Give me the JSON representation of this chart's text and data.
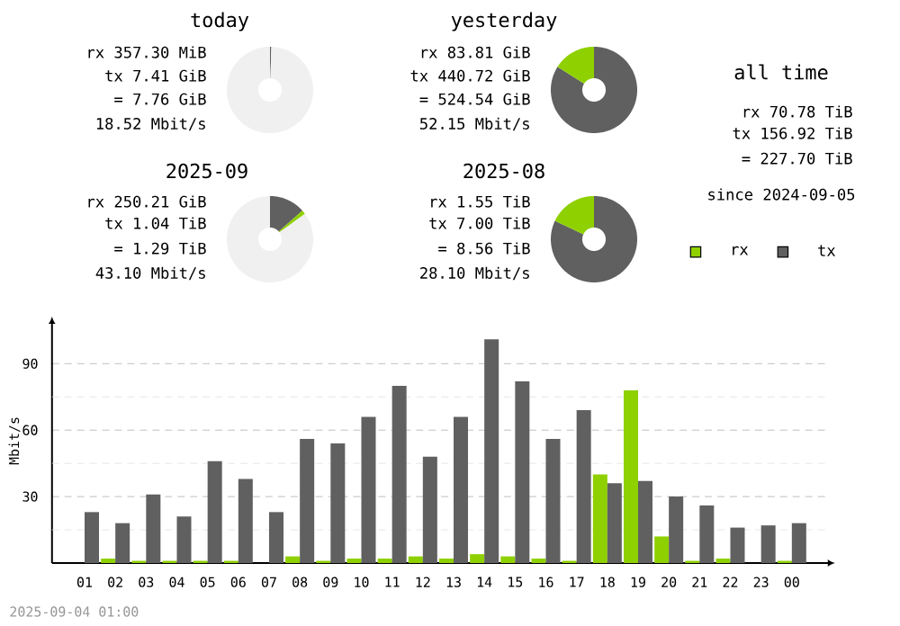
{
  "chart_data": [
    {
      "type": "donut",
      "title": "today",
      "categories": [
        null,
        null
      ],
      "values": [
        0.5,
        99.5
      ],
      "colors": [
        "#606060",
        "#f0f0f0"
      ],
      "annotations": [
        "rx 357.30 MiB",
        "tx 7.41 GiB",
        "= 7.76 GiB",
        "18.52 Mbit/s"
      ]
    },
    {
      "type": "donut",
      "title": "yesterday",
      "categories": [
        null,
        null
      ],
      "values": [
        84,
        16
      ],
      "colors": [
        "#606060",
        "#8fd000"
      ],
      "annotations": [
        "rx 83.81 GiB",
        "tx 440.72 GiB",
        "= 524.54 GiB",
        "52.15 Mbit/s"
      ]
    },
    {
      "type": "other",
      "title": "all time",
      "annotations": [
        "rx 70.78 TiB",
        "tx 156.92 TiB",
        "= 227.70 TiB",
        "since 2024-09-05"
      ]
    },
    {
      "type": "donut",
      "title": "2025-09",
      "categories": [
        null,
        null,
        null
      ],
      "values": [
        13.5,
        1.5,
        85
      ],
      "colors": [
        "#606060",
        "#8fd000",
        "#f0f0f0"
      ],
      "annotations": [
        "rx 250.21 GiB",
        "tx 1.04 TiB",
        "= 1.29 TiB",
        "43.10 Mbit/s"
      ]
    },
    {
      "type": "donut",
      "title": "2025-08",
      "categories": [
        null,
        null
      ],
      "values": [
        82,
        18
      ],
      "colors": [
        "#606060",
        "#8fd000"
      ],
      "annotations": [
        "rx 1.55 TiB",
        "tx 7.00 TiB",
        "= 8.56 TiB",
        "28.10 Mbit/s"
      ]
    },
    {
      "type": "bar",
      "ylabel": "Mbit/s",
      "categories": [
        "01",
        "02",
        "03",
        "04",
        "05",
        "06",
        "07",
        "08",
        "09",
        "10",
        "11",
        "12",
        "13",
        "14",
        "15",
        "16",
        "17",
        "18",
        "19",
        "20",
        "21",
        "22",
        "23",
        "00"
      ],
      "series": [
        {
          "name": "rx",
          "color": "#8fd000",
          "values": [
            0,
            2,
            1,
            1,
            1,
            1,
            0,
            3,
            1,
            2,
            2,
            3,
            2,
            4,
            3,
            2,
            1,
            40,
            78,
            12,
            1,
            2,
            0,
            1
          ]
        },
        {
          "name": "tx",
          "color": "#606060",
          "values": [
            23,
            18,
            31,
            21,
            46,
            38,
            23,
            56,
            54,
            66,
            80,
            48,
            66,
            101,
            82,
            56,
            69,
            36,
            37,
            30,
            26,
            16,
            17,
            18
          ]
        }
      ],
      "ylim": [
        0,
        108
      ],
      "yticks": [
        {
          "value": 15,
          "label": null
        },
        30,
        {
          "value": 45,
          "label": null
        },
        60,
        {
          "value": 75,
          "label": null
        },
        90
      ],
      "grid": "y",
      "legend": "top right",
      "annotations": [
        "2025-09-04 01:00"
      ]
    }
  ]
}
